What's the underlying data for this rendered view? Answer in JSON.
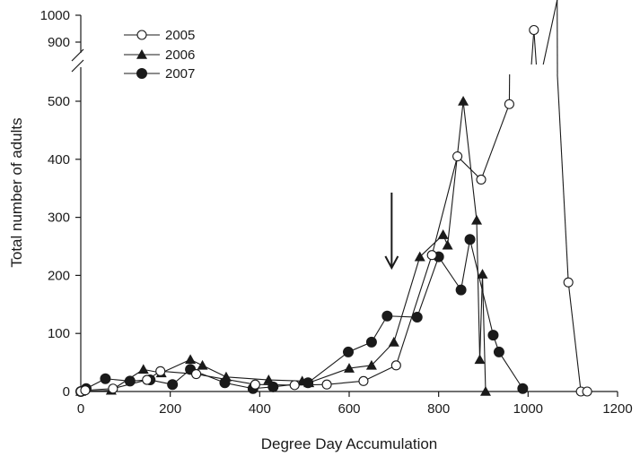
{
  "chart_data": {
    "type": "line",
    "xlabel": "Degree Day Accumulation",
    "ylabel": "Total number of adults",
    "xlim": [
      0,
      1200
    ],
    "ylim": [
      0,
      1000
    ],
    "axis_break": {
      "between": [
        500,
        900
      ]
    },
    "x_ticks": [
      0,
      200,
      400,
      600,
      800,
      1000,
      1200
    ],
    "y_ticks_lower": [
      0,
      100,
      200,
      300,
      400,
      500
    ],
    "y_ticks_upper": [
      900,
      1000
    ],
    "grid": false,
    "legend_position": "top-left",
    "annotation": {
      "type": "down-arrow",
      "x": 695
    },
    "series": [
      {
        "name": "2005",
        "marker": "open-circle",
        "x": [
          0,
          10,
          72,
          148,
          178,
          258,
          390,
          478,
          550,
          632,
          705,
          785,
          842,
          895,
          958,
          1013,
          1065,
          1090,
          1118,
          1132
        ],
        "y": [
          0,
          2,
          5,
          20,
          35,
          30,
          12,
          11,
          12,
          18,
          45,
          235,
          405,
          365,
          495,
          945,
          505,
          188,
          0,
          0
        ]
      },
      {
        "name": "2006",
        "marker": "filled-triangle",
        "x": [
          0,
          68,
          140,
          180,
          245,
          272,
          325,
          420,
          495,
          510,
          600,
          650,
          700,
          758,
          810,
          820,
          855,
          885,
          892,
          898,
          905
        ],
        "y": [
          0,
          2,
          38,
          32,
          55,
          45,
          25,
          20,
          18,
          15,
          40,
          45,
          85,
          232,
          270,
          252,
          500,
          295,
          55,
          202,
          0
        ]
      },
      {
        "name": "2007",
        "marker": "filled-circle",
        "x": [
          0,
          12,
          55,
          110,
          155,
          205,
          245,
          322,
          385,
          430,
          508,
          598,
          650,
          685,
          752,
          800,
          850,
          870,
          922,
          935,
          988
        ],
        "y": [
          0,
          5,
          22,
          18,
          20,
          12,
          38,
          15,
          5,
          8,
          15,
          68,
          85,
          130,
          128,
          232,
          175,
          262,
          97,
          68,
          5
        ]
      }
    ]
  }
}
